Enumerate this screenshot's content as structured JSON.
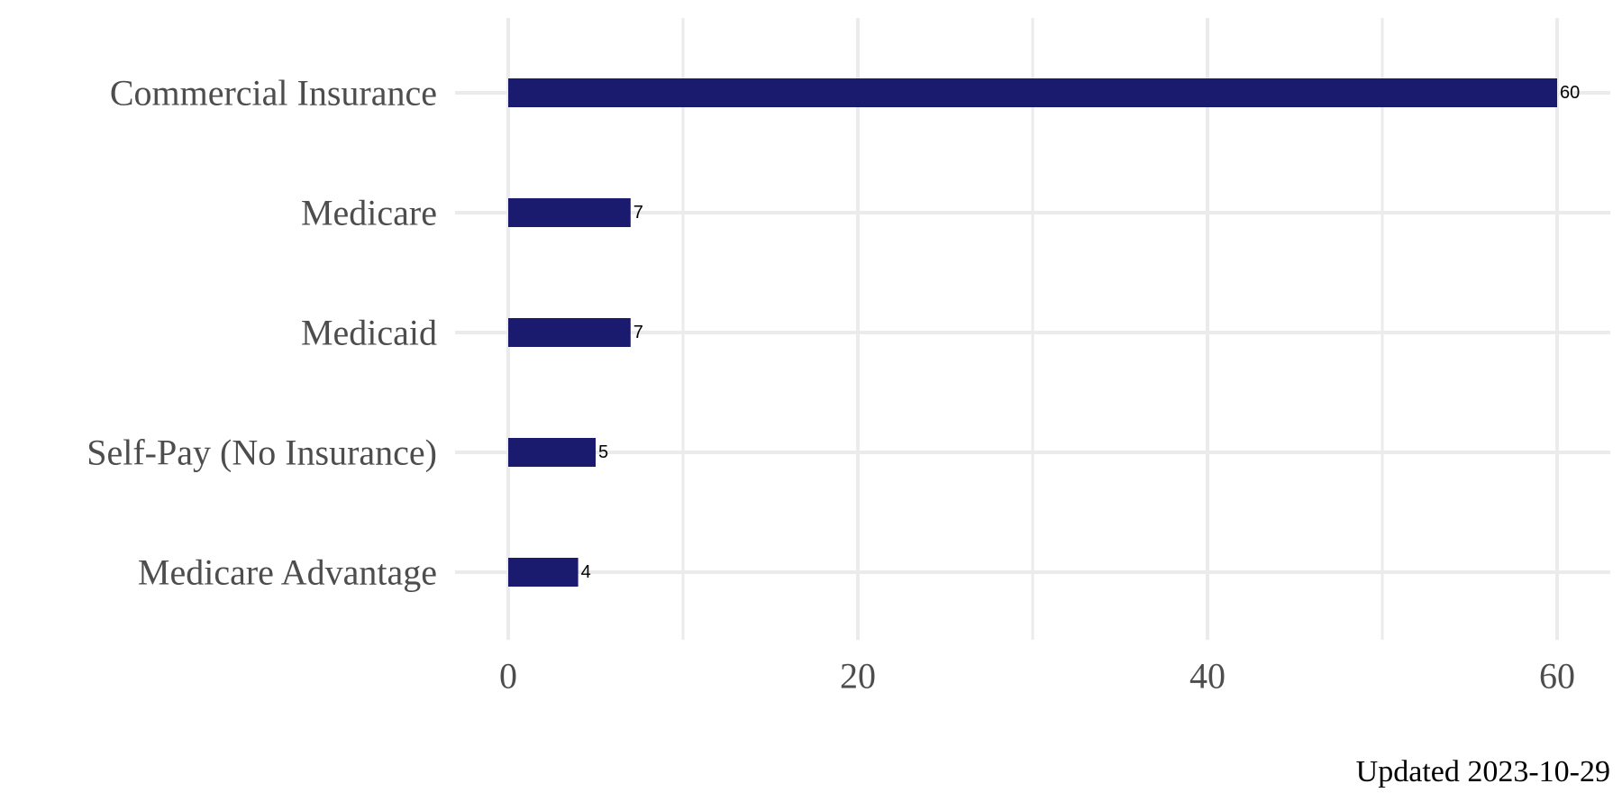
{
  "chart_data": {
    "type": "bar",
    "orientation": "horizontal",
    "title": "",
    "xlabel": "",
    "ylabel": "",
    "categories": [
      "Commercial Insurance",
      "Medicare",
      "Medicaid",
      "Self-Pay (No Insurance)",
      "Medicare Advantage"
    ],
    "values": [
      60,
      7,
      7,
      5,
      4
    ],
    "data_labels": [
      "60",
      "7",
      "7",
      "5",
      "4"
    ],
    "xlim": [
      0,
      62
    ],
    "x_ticks": [
      0,
      20,
      40,
      60
    ],
    "x_tick_labels": [
      "0",
      "20",
      "40",
      "60"
    ],
    "x_minor_ticks": [
      10,
      30,
      50
    ],
    "grid": true,
    "legend": "none",
    "colors": {
      "bar": "#1a1a6e",
      "grid": "#ebebeb",
      "tick_label": "#4d4d4d",
      "data_label": "#000000"
    }
  },
  "caption": "Updated 2023-10-29"
}
